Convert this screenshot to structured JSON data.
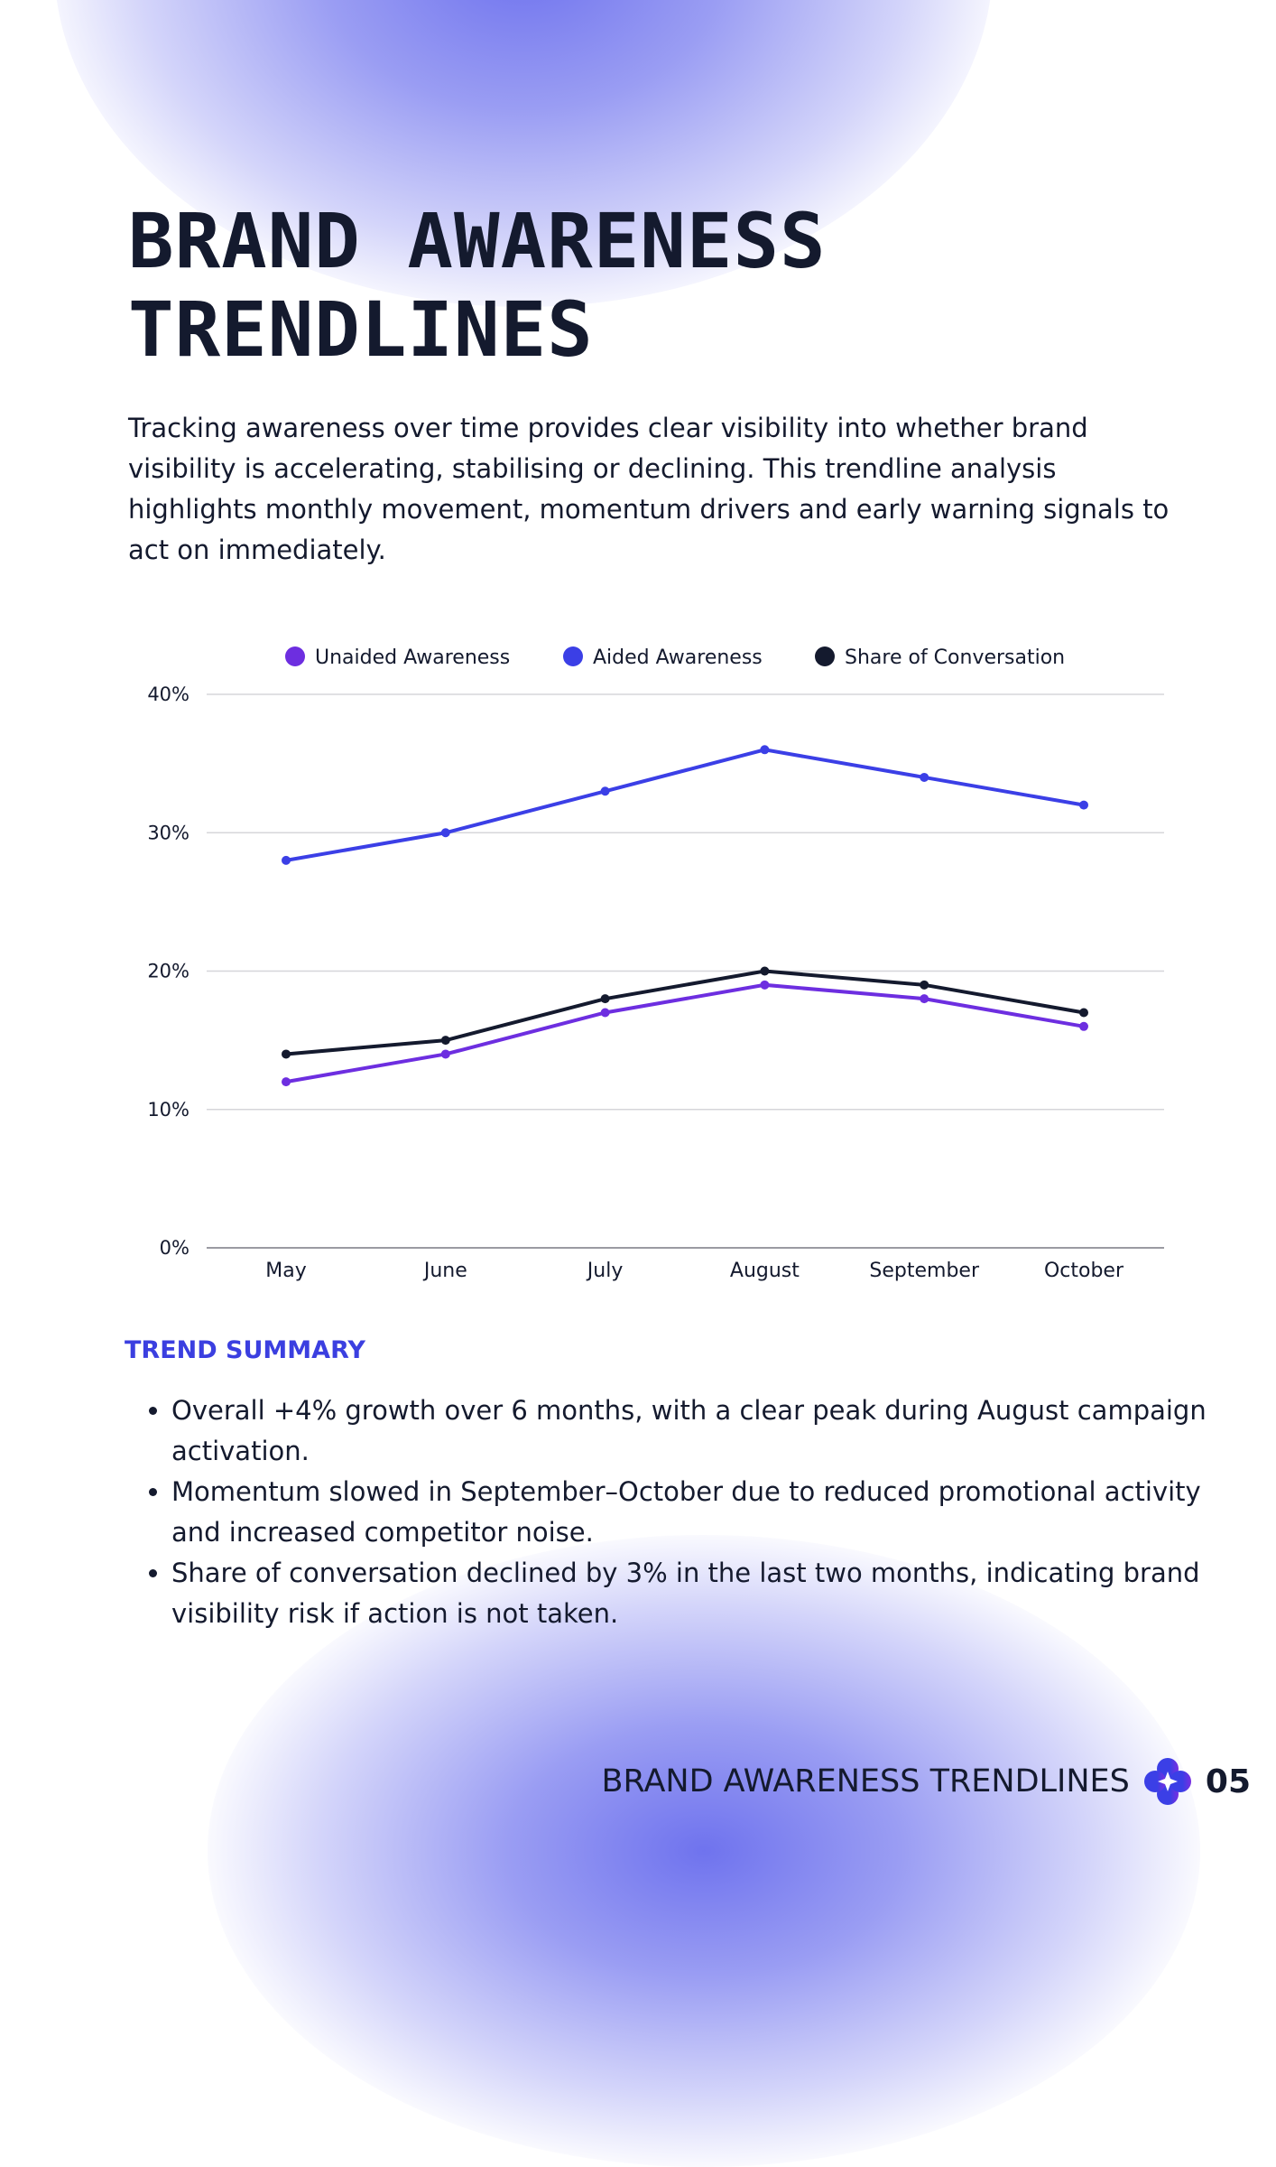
{
  "title": "BRAND AWARENESS TRENDLINES",
  "intro": "Tracking awareness over time provides clear visibility into whether brand visibility is accelerating, stabilising or declining. This trendline analysis highlights monthly movement, momentum drivers and early warning signals to act on immediately.",
  "colors": {
    "unaided": "#6d2ee0",
    "aided": "#3b3fe6",
    "share": "#141a2e",
    "accent": "#3b3fe0"
  },
  "chart_data": {
    "type": "line",
    "categories": [
      "May",
      "June",
      "July",
      "August",
      "September",
      "October"
    ],
    "series": [
      {
        "name": "Unaided Awareness",
        "color": "#6d2ee0",
        "values": [
          12,
          14,
          17,
          19,
          18,
          16
        ]
      },
      {
        "name": "Aided Awareness",
        "color": "#3b3fe6",
        "values": [
          28,
          30,
          33,
          36,
          34,
          32
        ]
      },
      {
        "name": "Share of Conversation",
        "color": "#141a2e",
        "values": [
          14,
          15,
          18,
          20,
          19,
          17
        ]
      }
    ],
    "yticks": [
      "0%",
      "10%",
      "20%",
      "30%",
      "40%"
    ],
    "ylim": [
      0,
      40
    ],
    "grid": true,
    "legend": "top"
  },
  "summary": {
    "title": "TREND SUMMARY",
    "items": [
      "Overall +4% growth over 6 months, with a clear peak during August campaign activation.",
      "Momentum slowed in September–October due to reduced promotional activity and increased competitor noise.",
      "Share of conversation declined by 3% in the last two months, indicating brand visibility risk if action is not taken."
    ]
  },
  "footer": {
    "title": "BRAND AWARENESS TRENDLINES",
    "page": "05",
    "logo_icon": "four-petal-star-logo"
  }
}
